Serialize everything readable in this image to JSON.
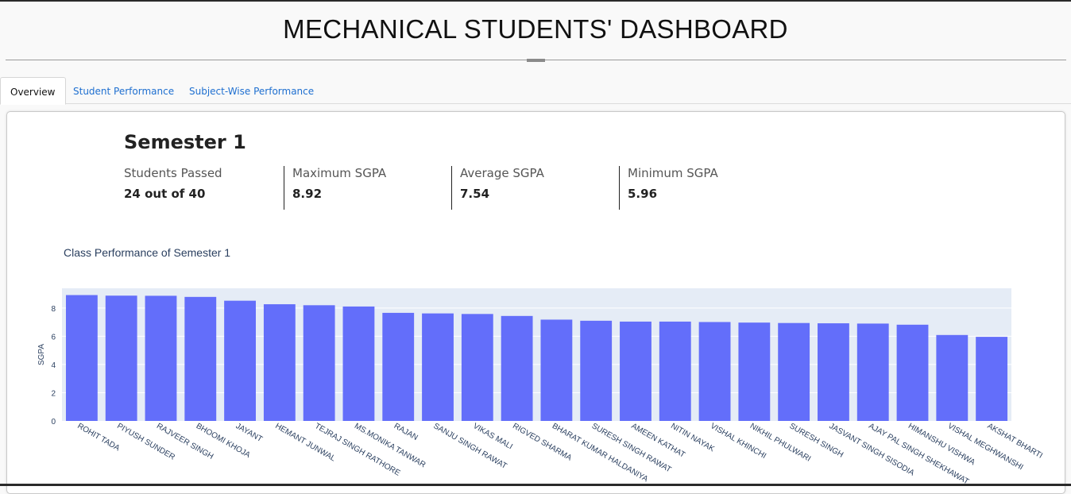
{
  "header": {
    "title": "MECHANICAL STUDENTS' DASHBOARD"
  },
  "tabs": [
    {
      "label": "Overview",
      "active": true
    },
    {
      "label": "Student Performance",
      "active": false
    },
    {
      "label": "Subject-Wise Performance",
      "active": false
    }
  ],
  "overview": {
    "semester_title": "Semester 1",
    "stats": [
      {
        "label": "Students Passed",
        "value": "24 out of 40"
      },
      {
        "label": "Maximum SGPA",
        "value": "8.92"
      },
      {
        "label": "Average SGPA",
        "value": "7.54"
      },
      {
        "label": "Minimum SGPA",
        "value": "5.96"
      }
    ]
  },
  "colors": {
    "bar": "#636efa",
    "plot_bg": "#e5ecf6",
    "axis_text": "#2a3f5f",
    "link": "#1e6fd0"
  },
  "chart_data": {
    "type": "bar",
    "title": "Class Performance of Semester 1",
    "xlabel": "",
    "ylabel": "SGPA",
    "ylim": [
      0,
      9.4
    ],
    "yticks": [
      0,
      2,
      4,
      6,
      8
    ],
    "grid": true,
    "categories": [
      "ROHIT TADA",
      "PIYUSH SUNDER",
      "RAJVEER SINGH",
      "BHOOMI KHOJA",
      "JAYANT",
      "HEMANT JUNWAL",
      "TEJRAJ SINGH RATHORE",
      "MS.MONIKA TANWAR",
      "RAJAN",
      "SANJU SINGH RAWAT",
      "VIKAS MALI",
      "RIGVED SHARMA",
      "BHARAT KUMAR HALDANIYA",
      "SURESH SINGH RAWAT",
      "AMEEN KATHAT",
      "NITIN NAYAK",
      "VISHAL KHINCHI",
      "NIKHIL PHULWARI",
      "SURESH SINGH",
      "JASVANT SINGH SISODIA",
      "AJAY PAL SINGH SHEKHAWAT",
      "HIMANSHU VISHWA",
      "VISHAL MEGHWANSHI",
      "AKSHAT BHARTI"
    ],
    "values": [
      8.92,
      8.88,
      8.87,
      8.79,
      8.52,
      8.27,
      8.2,
      8.11,
      7.66,
      7.62,
      7.58,
      7.44,
      7.18,
      7.1,
      7.04,
      7.04,
      7.01,
      6.97,
      6.94,
      6.92,
      6.9,
      6.82,
      6.09,
      5.96
    ]
  }
}
